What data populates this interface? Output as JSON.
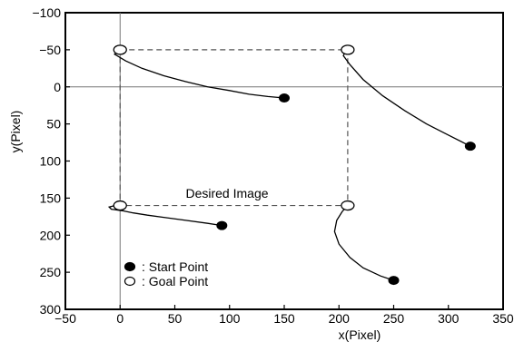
{
  "chart_data": {
    "type": "scatter",
    "title": "",
    "xlabel": "x(Pixel)",
    "ylabel": "y(Pixel)",
    "xlim": [
      -50,
      350
    ],
    "ylim": [
      -100,
      300
    ],
    "y_inverted": true,
    "grid": false,
    "zero_lines": true,
    "x_ticks": [
      -50,
      0,
      50,
      100,
      150,
      200,
      250,
      300,
      350
    ],
    "y_ticks": [
      -100,
      -50,
      0,
      50,
      100,
      150,
      200,
      250,
      300
    ],
    "x_tick_labels": [
      "−50",
      "0",
      "50",
      "100",
      "150",
      "200",
      "250",
      "300",
      "350"
    ],
    "y_tick_labels": [
      "−100",
      "−50",
      "0",
      "50",
      "100",
      "150",
      "200",
      "250",
      "300"
    ],
    "desired_image": {
      "label": "Desired Image",
      "corners": [
        [
          0,
          -50
        ],
        [
          208,
          -50
        ],
        [
          208,
          160
        ],
        [
          0,
          160
        ]
      ]
    },
    "legend": {
      "placement": "bottom-left",
      "entries": [
        {
          "marker": "filled",
          "label": ": Start Point"
        },
        {
          "marker": "hollow",
          "label": ": Goal Point"
        }
      ]
    },
    "series": [
      {
        "start": [
          150,
          15
        ],
        "goal": [
          0,
          -50
        ],
        "path": [
          [
            150,
            15
          ],
          [
            135,
            13
          ],
          [
            118,
            10
          ],
          [
            100,
            5
          ],
          [
            80,
            0
          ],
          [
            60,
            -7
          ],
          [
            40,
            -15
          ],
          [
            20,
            -25
          ],
          [
            5,
            -35
          ],
          [
            -5,
            -44
          ],
          [
            0,
            -50
          ]
        ]
      },
      {
        "start": [
          320,
          80
        ],
        "goal": [
          208,
          -50
        ],
        "path": [
          [
            320,
            80
          ],
          [
            300,
            65
          ],
          [
            280,
            50
          ],
          [
            260,
            32
          ],
          [
            240,
            12
          ],
          [
            222,
            -10
          ],
          [
            210,
            -30
          ],
          [
            204,
            -42
          ],
          [
            206,
            -48
          ],
          [
            208,
            -50
          ]
        ]
      },
      {
        "start": [
          93,
          187
        ],
        "goal": [
          0,
          160
        ],
        "path": [
          [
            93,
            187
          ],
          [
            80,
            184
          ],
          [
            60,
            180
          ],
          [
            40,
            176
          ],
          [
            25,
            173
          ],
          [
            12,
            170
          ],
          [
            2,
            167
          ],
          [
            -8,
            165
          ],
          [
            -10,
            162
          ],
          [
            -5,
            160
          ],
          [
            0,
            160
          ]
        ]
      },
      {
        "start": [
          250,
          261
        ],
        "goal": [
          208,
          160
        ],
        "path": [
          [
            250,
            261
          ],
          [
            238,
            255
          ],
          [
            222,
            244
          ],
          [
            210,
            230
          ],
          [
            200,
            212
          ],
          [
            196,
            195
          ],
          [
            198,
            180
          ],
          [
            203,
            168
          ],
          [
            208,
            160
          ]
        ]
      }
    ]
  }
}
